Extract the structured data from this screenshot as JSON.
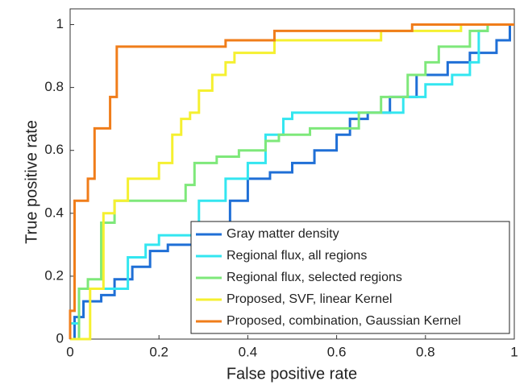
{
  "chart_data": {
    "type": "line",
    "xlabel": "False positive rate",
    "ylabel": "True positive rate",
    "xlim": [
      0,
      1
    ],
    "ylim": [
      0,
      1.05
    ],
    "xticks": [
      0,
      0.2,
      0.4,
      0.6,
      0.8,
      1
    ],
    "yticks": [
      0,
      0.2,
      0.4,
      0.6,
      0.8,
      1
    ],
    "grid": false,
    "legend": "lower right",
    "series": [
      {
        "name": "Gray matter density",
        "color": "#1f6fd6",
        "x": [
          0,
          0.01,
          0.01,
          0.03,
          0.03,
          0.07,
          0.07,
          0.1,
          0.1,
          0.14,
          0.14,
          0.18,
          0.18,
          0.22,
          0.22,
          0.3,
          0.3,
          0.36,
          0.36,
          0.4,
          0.4,
          0.45,
          0.45,
          0.5,
          0.5,
          0.55,
          0.55,
          0.6,
          0.6,
          0.63,
          0.63,
          0.67,
          0.67,
          0.72,
          0.72,
          0.78,
          0.78,
          0.85,
          0.85,
          0.9,
          0.9,
          0.96,
          0.96,
          0.99,
          0.99,
          1
        ],
        "values": [
          0,
          0,
          0.07,
          0.07,
          0.12,
          0.12,
          0.14,
          0.14,
          0.19,
          0.19,
          0.23,
          0.23,
          0.28,
          0.28,
          0.3,
          0.3,
          0.35,
          0.35,
          0.44,
          0.44,
          0.51,
          0.51,
          0.53,
          0.53,
          0.56,
          0.56,
          0.6,
          0.6,
          0.65,
          0.65,
          0.7,
          0.7,
          0.72,
          0.72,
          0.77,
          0.77,
          0.84,
          0.84,
          0.88,
          0.88,
          0.91,
          0.91,
          0.95,
          0.95,
          1,
          1
        ]
      },
      {
        "name": "Regional flux, all regions",
        "color": "#33e6f0",
        "x": [
          0,
          0,
          0.02,
          0.02,
          0.13,
          0.13,
          0.17,
          0.17,
          0.2,
          0.2,
          0.29,
          0.29,
          0.35,
          0.35,
          0.4,
          0.4,
          0.44,
          0.44,
          0.48,
          0.48,
          0.5,
          0.5,
          0.75,
          0.75,
          0.8,
          0.8,
          0.86,
          0.86,
          0.9,
          0.9,
          0.92,
          0.92,
          0.94,
          0.94,
          1
        ],
        "values": [
          0,
          0.05,
          0.05,
          0.16,
          0.16,
          0.26,
          0.26,
          0.3,
          0.3,
          0.33,
          0.33,
          0.44,
          0.44,
          0.51,
          0.51,
          0.56,
          0.56,
          0.65,
          0.65,
          0.7,
          0.7,
          0.72,
          0.72,
          0.77,
          0.77,
          0.81,
          0.81,
          0.84,
          0.84,
          0.88,
          0.88,
          0.98,
          0.98,
          1,
          1
        ]
      },
      {
        "name": "Regional flux, selected regions",
        "color": "#7ee87a",
        "x": [
          0,
          0.02,
          0.02,
          0.04,
          0.04,
          0.07,
          0.07,
          0.1,
          0.1,
          0.26,
          0.26,
          0.28,
          0.28,
          0.33,
          0.33,
          0.38,
          0.38,
          0.44,
          0.44,
          0.47,
          0.47,
          0.54,
          0.54,
          0.65,
          0.65,
          0.7,
          0.7,
          0.76,
          0.76,
          0.8,
          0.8,
          0.83,
          0.83,
          0.9,
          0.9,
          0.94,
          0.94,
          1
        ],
        "values": [
          0,
          0,
          0.16,
          0.16,
          0.19,
          0.19,
          0.37,
          0.37,
          0.44,
          0.44,
          0.49,
          0.49,
          0.56,
          0.56,
          0.58,
          0.58,
          0.6,
          0.6,
          0.63,
          0.63,
          0.65,
          0.65,
          0.67,
          0.67,
          0.72,
          0.72,
          0.77,
          0.77,
          0.84,
          0.84,
          0.88,
          0.88,
          0.93,
          0.93,
          0.98,
          0.98,
          1,
          1
        ]
      },
      {
        "name": "Proposed, SVF, linear Kernel",
        "color": "#f5f030",
        "x": [
          0,
          0.045,
          0.045,
          0.075,
          0.075,
          0.1,
          0.1,
          0.13,
          0.13,
          0.2,
          0.2,
          0.23,
          0.23,
          0.25,
          0.25,
          0.27,
          0.27,
          0.29,
          0.29,
          0.32,
          0.32,
          0.35,
          0.35,
          0.37,
          0.37,
          0.46,
          0.46,
          0.7,
          0.7,
          0.88,
          0.88,
          1
        ],
        "values": [
          0,
          0,
          0.16,
          0.16,
          0.4,
          0.4,
          0.44,
          0.44,
          0.51,
          0.51,
          0.56,
          0.56,
          0.65,
          0.65,
          0.7,
          0.7,
          0.72,
          0.72,
          0.79,
          0.79,
          0.84,
          0.84,
          0.88,
          0.88,
          0.91,
          0.91,
          0.95,
          0.95,
          0.98,
          0.98,
          1,
          1
        ]
      },
      {
        "name": "Proposed, combination, Gaussian Kernel",
        "color": "#f07d1a",
        "x": [
          0,
          0,
          0.01,
          0.01,
          0.04,
          0.04,
          0.055,
          0.055,
          0.09,
          0.09,
          0.105,
          0.105,
          0.35,
          0.35,
          0.46,
          0.46,
          0.77,
          0.77,
          1
        ],
        "values": [
          0,
          0.09,
          0.09,
          0.44,
          0.44,
          0.51,
          0.51,
          0.67,
          0.67,
          0.77,
          0.77,
          0.93,
          0.93,
          0.95,
          0.95,
          0.98,
          0.98,
          1,
          1
        ]
      }
    ]
  }
}
